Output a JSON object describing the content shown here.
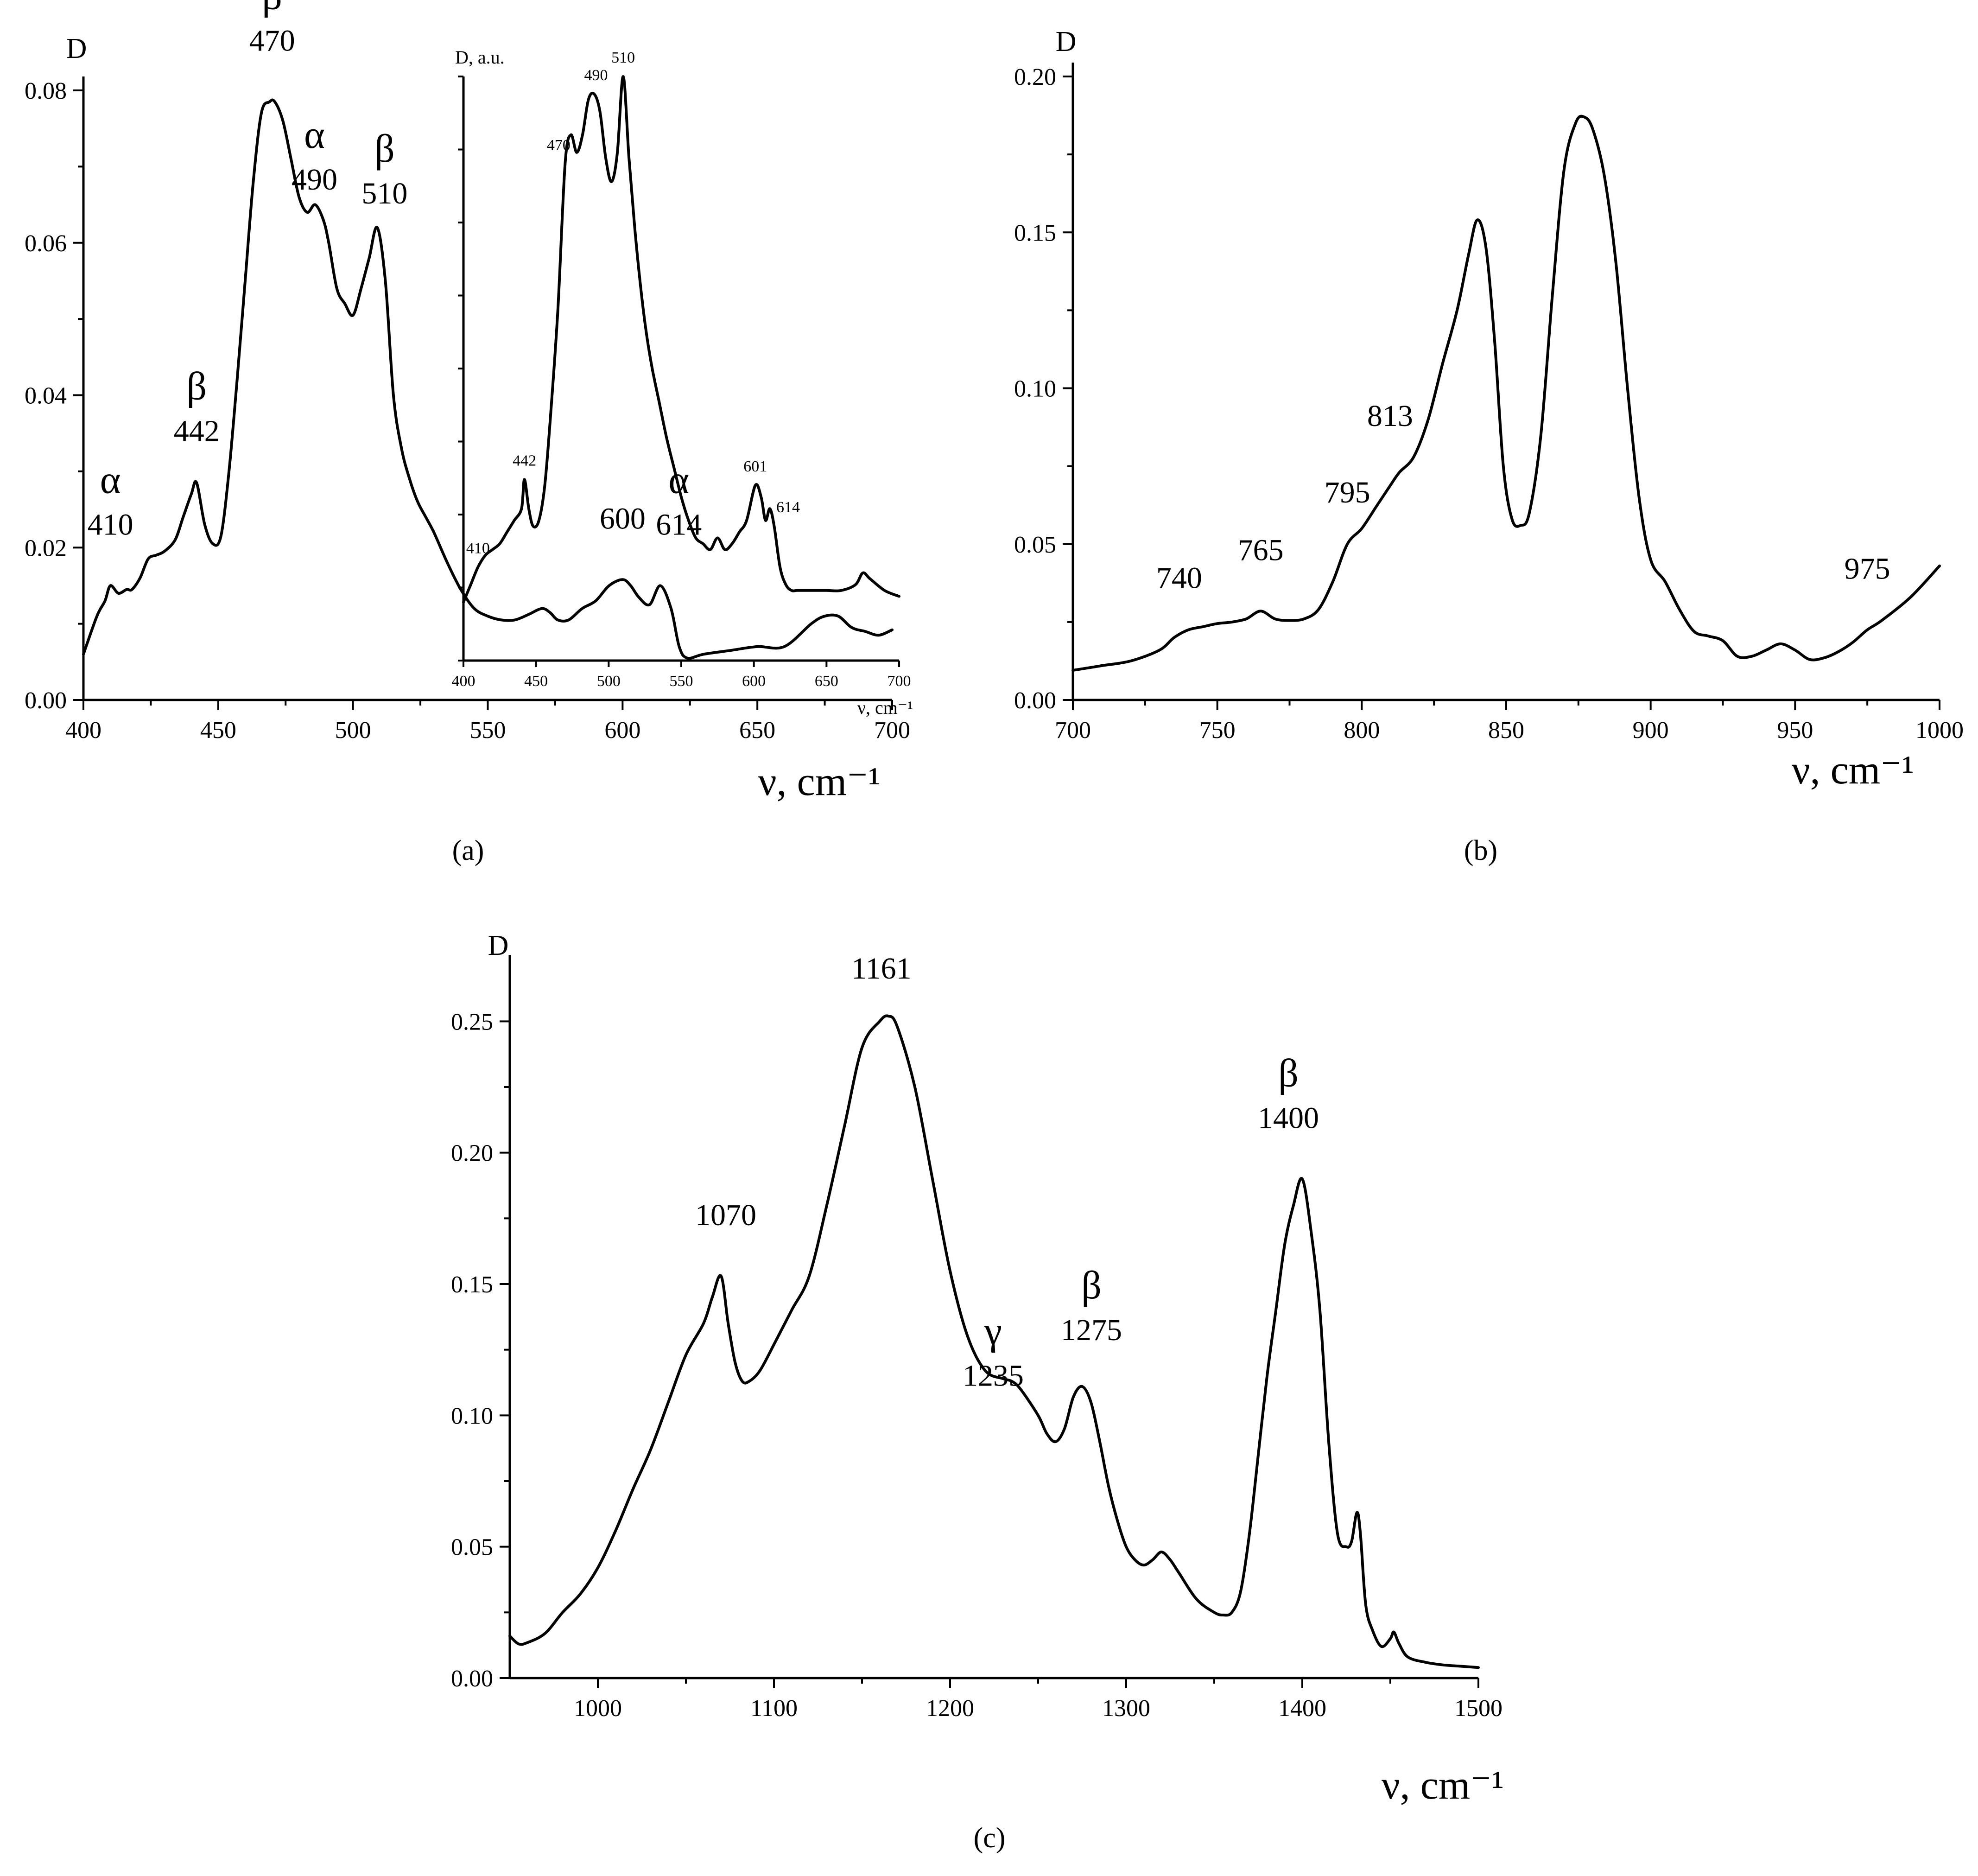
{
  "chart_data": [
    {
      "id": "a",
      "type": "line",
      "panel_label": "(a)",
      "ylabel": "D",
      "xlabel": "ν, cm⁻¹",
      "xlim": [
        400,
        700
      ],
      "ylim": [
        0,
        0.08
      ],
      "x_ticks": [
        400,
        450,
        500,
        550,
        600,
        650,
        700
      ],
      "x_tick_labels": [
        "400",
        "450",
        "500",
        "550",
        "600",
        "650",
        "700"
      ],
      "y_ticks": [
        0,
        0.02,
        0.04,
        0.06,
        0.08
      ],
      "y_tick_labels": [
        "0.00",
        "0.02",
        "0.04",
        "0.06",
        "0.08"
      ],
      "series": [
        {
          "name": "spectrum",
          "x": [
            400,
            405,
            408,
            410,
            413,
            416,
            418,
            421,
            424,
            427,
            430,
            434,
            437,
            440,
            442,
            445,
            448,
            451,
            454,
            457,
            460,
            463,
            466,
            469,
            471,
            474,
            477,
            480,
            483,
            486,
            489,
            491,
            494,
            497,
            500,
            503,
            506,
            509,
            512,
            515,
            518,
            521,
            524,
            527,
            530,
            535,
            540,
            545,
            550,
            555,
            560,
            565,
            570,
            573,
            576,
            580,
            585,
            590,
            595,
            600,
            603,
            606,
            610,
            614,
            618,
            621,
            624,
            630,
            640,
            650,
            660,
            670,
            675,
            680,
            685,
            690,
            695,
            700
          ],
          "values": [
            0.006,
            0.011,
            0.013,
            0.015,
            0.014,
            0.0145,
            0.0145,
            0.016,
            0.0185,
            0.019,
            0.0195,
            0.021,
            0.024,
            0.027,
            0.0285,
            0.023,
            0.0205,
            0.0215,
            0.03,
            0.042,
            0.055,
            0.068,
            0.077,
            0.0785,
            0.0785,
            0.076,
            0.071,
            0.066,
            0.064,
            0.065,
            0.063,
            0.06,
            0.054,
            0.052,
            0.0505,
            0.054,
            0.058,
            0.062,
            0.055,
            0.04,
            0.033,
            0.029,
            0.026,
            0.024,
            0.022,
            0.018,
            0.0145,
            0.012,
            0.011,
            0.0105,
            0.0105,
            0.0112,
            0.012,
            0.0115,
            0.0105,
            0.0105,
            0.012,
            0.013,
            0.015,
            0.0158,
            0.015,
            0.0135,
            0.0125,
            0.015,
            0.012,
            0.007,
            0.0055,
            0.006,
            0.0065,
            0.007,
            0.007,
            0.01,
            0.011,
            0.011,
            0.0095,
            0.009,
            0.0085,
            0.0092
          ]
        }
      ],
      "annotations": [
        {
          "x": 410,
          "text": "410",
          "greek": "α"
        },
        {
          "x": 442,
          "text": "442",
          "greek": "β"
        },
        {
          "x": 470,
          "text": "470",
          "greek": "β"
        },
        {
          "x": 490,
          "text": "490",
          "greek": "α"
        },
        {
          "x": 510,
          "text": "510",
          "greek": "β"
        },
        {
          "x": 600,
          "text": "600",
          "greek": ""
        },
        {
          "x": 614,
          "text": "614",
          "greek": "α"
        }
      ],
      "inset": {
        "type": "line",
        "ylabel": "D, a.u.",
        "xlabel": "ν, cm⁻¹",
        "xlim": [
          400,
          700
        ],
        "ylim": [
          0,
          1
        ],
        "x_ticks": [
          400,
          450,
          500,
          550,
          600,
          650,
          700
        ],
        "x_tick_labels": [
          "400",
          "450",
          "500",
          "550",
          "600",
          "650",
          "700"
        ],
        "series": [
          {
            "name": "inset spectrum",
            "x": [
              400,
              405,
              410,
              415,
              420,
              425,
              430,
              435,
              440,
              442,
              445,
              448,
              452,
              456,
              460,
              465,
              470,
              474,
              478,
              482,
              486,
              490,
              494,
              498,
              502,
              506,
              510,
              514,
              518,
              522,
              526,
              530,
              535,
              540,
              545,
              550,
              555,
              560,
              565,
              570,
              575,
              580,
              585,
              590,
              595,
              601,
              605,
              608,
              611,
              614,
              618,
              622,
              626,
              630,
              640,
              650,
              660,
              670,
              675,
              680,
              690,
              700
            ],
            "values": [
              0.1,
              0.13,
              0.16,
              0.18,
              0.19,
              0.2,
              0.22,
              0.24,
              0.26,
              0.31,
              0.26,
              0.23,
              0.24,
              0.3,
              0.42,
              0.6,
              0.85,
              0.9,
              0.87,
              0.9,
              0.96,
              0.97,
              0.94,
              0.86,
              0.82,
              0.87,
              1.0,
              0.86,
              0.74,
              0.64,
              0.56,
              0.5,
              0.44,
              0.38,
              0.33,
              0.28,
              0.24,
              0.21,
              0.2,
              0.19,
              0.21,
              0.19,
              0.2,
              0.22,
              0.24,
              0.3,
              0.28,
              0.24,
              0.26,
              0.23,
              0.16,
              0.13,
              0.12,
              0.12,
              0.12,
              0.12,
              0.12,
              0.13,
              0.15,
              0.14,
              0.12,
              0.11
            ]
          }
        ],
        "annotations": [
          {
            "x": 410,
            "text": "410"
          },
          {
            "x": 442,
            "text": "442"
          },
          {
            "x": 470,
            "text": "470"
          },
          {
            "x": 490,
            "text": "490"
          },
          {
            "x": 510,
            "text": "510"
          },
          {
            "x": 601,
            "text": "601"
          },
          {
            "x": 614,
            "text": "614"
          }
        ]
      }
    },
    {
      "id": "b",
      "type": "line",
      "panel_label": "(b)",
      "ylabel": "D",
      "xlabel": "ν, cm⁻¹",
      "xlim": [
        700,
        1000
      ],
      "ylim": [
        0,
        0.2
      ],
      "x_ticks": [
        700,
        750,
        800,
        850,
        900,
        950,
        1000
      ],
      "x_tick_labels": [
        "700",
        "750",
        "800",
        "850",
        "900",
        "950",
        "1000"
      ],
      "y_ticks": [
        0,
        0.05,
        0.1,
        0.15,
        0.2
      ],
      "y_tick_labels": [
        "0.00",
        "0.05",
        "0.10",
        "0.15",
        "0.20"
      ],
      "series": [
        {
          "name": "spectrum",
          "x": [
            700,
            710,
            720,
            730,
            735,
            740,
            745,
            750,
            755,
            760,
            765,
            770,
            775,
            780,
            785,
            790,
            795,
            800,
            805,
            810,
            813,
            818,
            823,
            828,
            833,
            837,
            840,
            843,
            846,
            849,
            852,
            855,
            858,
            862,
            866,
            870,
            874,
            877,
            880,
            884,
            888,
            892,
            896,
            900,
            905,
            910,
            915,
            920,
            925,
            930,
            935,
            940,
            945,
            950,
            955,
            960,
            965,
            970,
            975,
            980,
            990,
            1000
          ],
          "values": [
            0.0095,
            0.011,
            0.0125,
            0.016,
            0.02,
            0.0225,
            0.0235,
            0.0245,
            0.025,
            0.026,
            0.0285,
            0.026,
            0.0255,
            0.026,
            0.029,
            0.038,
            0.05,
            0.055,
            0.062,
            0.069,
            0.073,
            0.078,
            0.09,
            0.108,
            0.125,
            0.143,
            0.154,
            0.145,
            0.115,
            0.075,
            0.058,
            0.056,
            0.06,
            0.085,
            0.13,
            0.17,
            0.185,
            0.187,
            0.183,
            0.168,
            0.14,
            0.1,
            0.065,
            0.045,
            0.038,
            0.029,
            0.022,
            0.0205,
            0.019,
            0.014,
            0.014,
            0.016,
            0.018,
            0.016,
            0.013,
            0.0135,
            0.0155,
            0.0185,
            0.0225,
            0.0255,
            0.033,
            0.043
          ]
        }
      ],
      "annotations": [
        {
          "x": 740,
          "text": "740"
        },
        {
          "x": 765,
          "text": "765"
        },
        {
          "x": 795,
          "text": "795"
        },
        {
          "x": 813,
          "text": "813"
        },
        {
          "x": 975,
          "text": "975"
        }
      ]
    },
    {
      "id": "c",
      "type": "line",
      "panel_label": "(c)",
      "ylabel": "D",
      "xlabel": "ν, cm⁻¹",
      "xlim": [
        950,
        1500
      ],
      "ylim": [
        0,
        0.27
      ],
      "x_ticks": [
        1000,
        1100,
        1200,
        1300,
        1400,
        1500
      ],
      "x_tick_labels": [
        "1000",
        "1100",
        "1200",
        "1300",
        "1400",
        "1500"
      ],
      "y_ticks": [
        0,
        0.05,
        0.1,
        0.15,
        0.2,
        0.25
      ],
      "y_tick_labels": [
        "0.00",
        "0.05",
        "0.10",
        "0.15",
        "0.20",
        "0.25"
      ],
      "series": [
        {
          "name": "spectrum",
          "x": [
            950,
            955,
            960,
            970,
            980,
            990,
            1000,
            1010,
            1020,
            1030,
            1040,
            1050,
            1060,
            1065,
            1070,
            1074,
            1078,
            1082,
            1086,
            1092,
            1100,
            1110,
            1120,
            1130,
            1140,
            1150,
            1160,
            1165,
            1170,
            1180,
            1190,
            1200,
            1210,
            1220,
            1230,
            1235,
            1240,
            1250,
            1255,
            1260,
            1265,
            1270,
            1275,
            1280,
            1285,
            1290,
            1295,
            1300,
            1305,
            1310,
            1315,
            1320,
            1325,
            1330,
            1340,
            1350,
            1355,
            1360,
            1365,
            1370,
            1375,
            1380,
            1385,
            1390,
            1395,
            1400,
            1405,
            1410,
            1415,
            1420,
            1425,
            1428,
            1431,
            1433,
            1436,
            1440,
            1445,
            1450,
            1452,
            1455,
            1460,
            1470,
            1480,
            1490,
            1500
          ],
          "values": [
            0.016,
            0.013,
            0.0135,
            0.017,
            0.025,
            0.032,
            0.042,
            0.056,
            0.072,
            0.087,
            0.105,
            0.123,
            0.135,
            0.145,
            0.153,
            0.135,
            0.12,
            0.113,
            0.113,
            0.117,
            0.127,
            0.14,
            0.153,
            0.18,
            0.21,
            0.24,
            0.25,
            0.252,
            0.248,
            0.225,
            0.19,
            0.155,
            0.13,
            0.117,
            0.114,
            0.113,
            0.11,
            0.1,
            0.093,
            0.09,
            0.095,
            0.107,
            0.111,
            0.105,
            0.09,
            0.073,
            0.06,
            0.05,
            0.045,
            0.043,
            0.045,
            0.048,
            0.045,
            0.04,
            0.03,
            0.025,
            0.024,
            0.025,
            0.033,
            0.055,
            0.085,
            0.115,
            0.14,
            0.165,
            0.18,
            0.19,
            0.17,
            0.14,
            0.09,
            0.055,
            0.05,
            0.052,
            0.063,
            0.055,
            0.028,
            0.018,
            0.012,
            0.015,
            0.0175,
            0.013,
            0.008,
            0.006,
            0.005,
            0.0045,
            0.004
          ]
        }
      ],
      "annotations": [
        {
          "x": 1070,
          "text": "1070",
          "greek": ""
        },
        {
          "x": 1161,
          "text": "1161",
          "greek": ""
        },
        {
          "x": 1235,
          "text": "1235",
          "greek": "γ"
        },
        {
          "x": 1275,
          "text": "1275",
          "greek": "β"
        },
        {
          "x": 1400,
          "text": "1400",
          "greek": "β"
        }
      ]
    }
  ]
}
